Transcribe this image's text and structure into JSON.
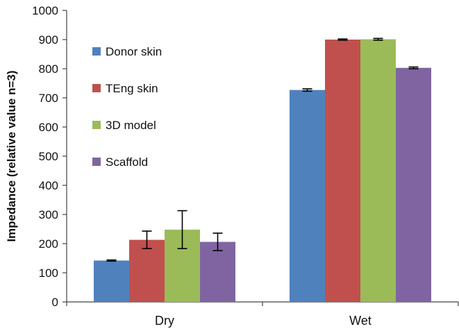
{
  "chart_data": {
    "type": "bar",
    "title": "",
    "xlabel": "",
    "ylabel": "Impedance (relative value n=3)",
    "ylim": [
      0,
      1000
    ],
    "yticks": [
      0,
      100,
      200,
      300,
      400,
      500,
      600,
      700,
      800,
      900,
      1000
    ],
    "grid": false,
    "legend_position": "top-left",
    "categories": [
      "Dry",
      "Wet"
    ],
    "series": [
      {
        "name": "Donor skin",
        "color": "#4F81BD",
        "values": [
          142,
          727
        ],
        "errors": [
          2,
          4
        ]
      },
      {
        "name": "TEng skin",
        "color": "#C0504D",
        "values": [
          213,
          900
        ],
        "errors": [
          30,
          2
        ]
      },
      {
        "name": "3D model",
        "color": "#9BBB59",
        "values": [
          248,
          901
        ],
        "errors": [
          65,
          3
        ]
      },
      {
        "name": "Scaffold",
        "color": "#8064A2",
        "values": [
          206,
          803
        ],
        "errors": [
          30,
          3
        ]
      }
    ]
  }
}
